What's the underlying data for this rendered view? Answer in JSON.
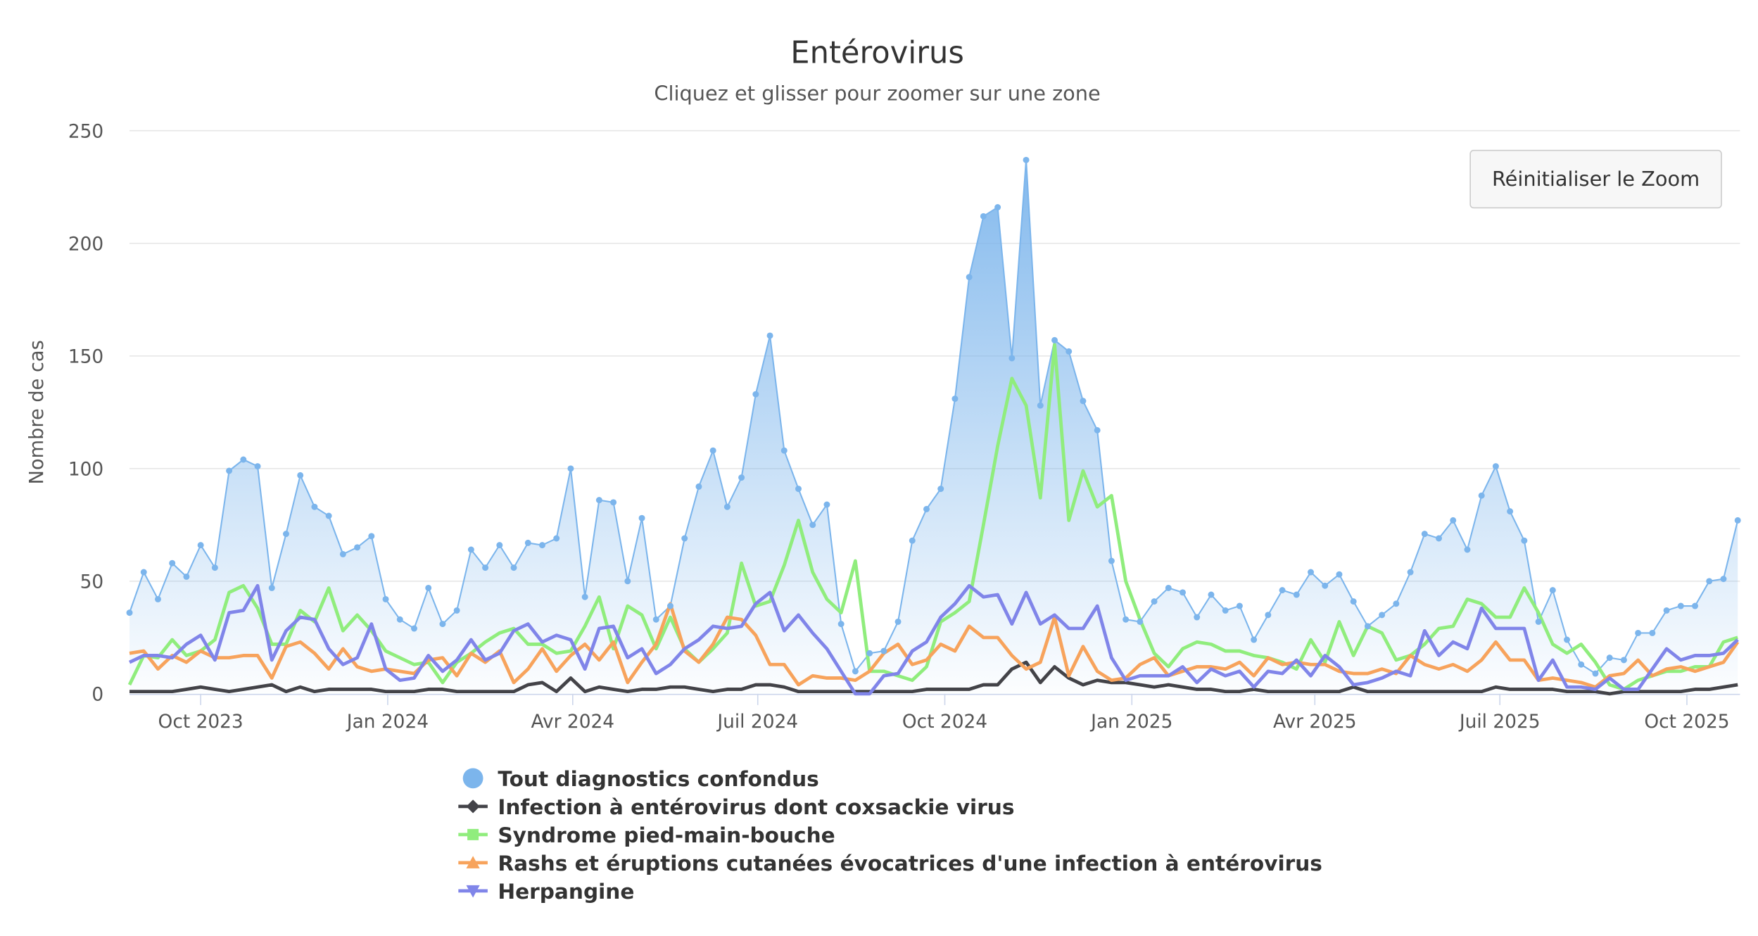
{
  "chart_data": {
    "type": "line",
    "title": "Entérovirus",
    "subtitle": "Cliquez et glisser pour zoomer sur une zone",
    "ylabel": "Nombre de cas",
    "xlabel": "",
    "ylim": [
      0,
      250
    ],
    "yticks": [
      0,
      50,
      100,
      150,
      200,
      250
    ],
    "x_start": "2023-08-27",
    "x_interval": "week",
    "xticks": [
      {
        "date": "2023-10-01",
        "label": "Oct 2023"
      },
      {
        "date": "2024-01-01",
        "label": "Jan 2024"
      },
      {
        "date": "2024-04-01",
        "label": "Avr 2024"
      },
      {
        "date": "2024-07-01",
        "label": "Juil 2024"
      },
      {
        "date": "2024-10-01",
        "label": "Oct 2024"
      },
      {
        "date": "2025-01-01",
        "label": "Jan 2025"
      },
      {
        "date": "2025-04-01",
        "label": "Avr 2025"
      },
      {
        "date": "2025-07-01",
        "label": "Juil 2025"
      },
      {
        "date": "2025-10-01",
        "label": "Oct 2025"
      }
    ],
    "grid": true,
    "legend_placement": "bottom",
    "reset_zoom_label": "Réinitialiser le Zoom",
    "series": [
      {
        "name": "Tout diagnostics confondus",
        "type": "area",
        "color": "#7cb5ec",
        "marker": "circle",
        "values": [
          36,
          54,
          42,
          58,
          52,
          66,
          56,
          99,
          104,
          101,
          47,
          71,
          97,
          83,
          79,
          62,
          65,
          70,
          42,
          33,
          29,
          47,
          31,
          37,
          64,
          56,
          66,
          56,
          67,
          66,
          69,
          100,
          43,
          86,
          85,
          50,
          78,
          33,
          39,
          69,
          92,
          108,
          83,
          96,
          133,
          159,
          108,
          91,
          75,
          84,
          31,
          10,
          18,
          19,
          32,
          68,
          82,
          91,
          131,
          185,
          212,
          216,
          149,
          237,
          128,
          157,
          152,
          130,
          117,
          59,
          33,
          32,
          41,
          47,
          45,
          34,
          44,
          37,
          39,
          24,
          35,
          46,
          44,
          54,
          48,
          53,
          41,
          30,
          35,
          40,
          54,
          71,
          69,
          77,
          64,
          88,
          101,
          81,
          68,
          32,
          46,
          24,
          13,
          9,
          16,
          15,
          27,
          27,
          37,
          39,
          39,
          50,
          51,
          77
        ]
      },
      {
        "name": "Infection à entérovirus dont coxsackie virus",
        "type": "line",
        "color": "#434348",
        "marker": "diamond",
        "values": [
          1,
          1,
          1,
          1,
          2,
          3,
          2,
          1,
          2,
          3,
          4,
          1,
          3,
          1,
          2,
          2,
          2,
          2,
          1,
          1,
          1,
          2,
          2,
          1,
          1,
          1,
          1,
          1,
          4,
          5,
          1,
          7,
          1,
          3,
          2,
          1,
          2,
          2,
          3,
          3,
          2,
          1,
          2,
          2,
          4,
          4,
          3,
          1,
          1,
          1,
          1,
          1,
          1,
          1,
          1,
          1,
          2,
          2,
          2,
          2,
          4,
          4,
          11,
          14,
          5,
          12,
          7,
          4,
          6,
          5,
          5,
          4,
          3,
          4,
          3,
          2,
          2,
          1,
          1,
          2,
          1,
          1,
          1,
          1,
          1,
          1,
          3,
          1,
          1,
          1,
          1,
          1,
          1,
          1,
          1,
          1,
          3,
          2,
          2,
          2,
          2,
          1,
          1,
          1,
          0,
          1,
          1,
          1,
          1,
          1,
          2,
          2,
          3,
          4
        ]
      },
      {
        "name": "Syndrome pied-main-bouche",
        "type": "line",
        "color": "#90ed7d",
        "marker": "square",
        "values": [
          4,
          17,
          16,
          24,
          17,
          19,
          24,
          45,
          48,
          38,
          22,
          22,
          37,
          32,
          47,
          28,
          35,
          28,
          19,
          16,
          13,
          14,
          5,
          14,
          18,
          23,
          27,
          29,
          22,
          22,
          18,
          19,
          30,
          43,
          20,
          39,
          35,
          20,
          34,
          20,
          14,
          20,
          27,
          58,
          39,
          41,
          57,
          77,
          54,
          42,
          36,
          59,
          10,
          10,
          8,
          6,
          12,
          32,
          36,
          41,
          75,
          110,
          140,
          128,
          87,
          155,
          77,
          99,
          83,
          88,
          50,
          33,
          18,
          12,
          20,
          23,
          22,
          19,
          19,
          17,
          16,
          14,
          11,
          24,
          14,
          32,
          17,
          30,
          27,
          15,
          17,
          22,
          29,
          30,
          42,
          40,
          34,
          34,
          47,
          36,
          22,
          18,
          22,
          14,
          4,
          2,
          6,
          8,
          10,
          10,
          12,
          12,
          23,
          25
        ]
      },
      {
        "name": "Rashs et éruptions cutanées évocatrices d'une infection à entérovirus",
        "type": "line",
        "color": "#f7a35c",
        "marker": "triangle",
        "values": [
          18,
          19,
          11,
          17,
          14,
          19,
          16,
          16,
          17,
          17,
          7,
          21,
          23,
          18,
          11,
          20,
          12,
          10,
          11,
          10,
          9,
          15,
          16,
          8,
          18,
          14,
          19,
          5,
          11,
          20,
          10,
          17,
          22,
          15,
          23,
          5,
          14,
          22,
          40,
          19,
          14,
          22,
          34,
          33,
          26,
          13,
          13,
          4,
          8,
          7,
          7,
          6,
          10,
          18,
          22,
          13,
          15,
          22,
          19,
          30,
          25,
          25,
          17,
          11,
          14,
          34,
          8,
          21,
          10,
          6,
          7,
          13,
          16,
          8,
          10,
          12,
          12,
          11,
          14,
          8,
          16,
          13,
          14,
          13,
          13,
          10,
          9,
          9,
          11,
          9,
          17,
          13,
          11,
          13,
          10,
          15,
          23,
          15,
          15,
          6,
          7,
          6,
          5,
          3,
          8,
          9,
          15,
          8,
          11,
          12,
          10,
          12,
          14,
          23
        ]
      },
      {
        "name": "Herpangine",
        "type": "line",
        "color": "#8085e9",
        "marker": "triangle-down",
        "values": [
          14,
          17,
          17,
          16,
          22,
          26,
          15,
          36,
          37,
          48,
          15,
          28,
          34,
          33,
          20,
          13,
          16,
          31,
          11,
          6,
          7,
          17,
          10,
          15,
          24,
          15,
          18,
          28,
          31,
          23,
          26,
          24,
          11,
          29,
          30,
          16,
          20,
          9,
          13,
          20,
          24,
          30,
          29,
          30,
          40,
          45,
          28,
          35,
          27,
          20,
          10,
          0,
          0,
          8,
          9,
          19,
          23,
          34,
          40,
          48,
          43,
          44,
          31,
          45,
          31,
          35,
          29,
          29,
          39,
          16,
          6,
          8,
          8,
          8,
          12,
          5,
          11,
          8,
          10,
          3,
          10,
          9,
          15,
          8,
          17,
          12,
          4,
          5,
          7,
          10,
          8,
          28,
          17,
          23,
          20,
          38,
          29,
          29,
          29,
          6,
          15,
          3,
          3,
          2,
          7,
          2,
          2,
          11,
          20,
          15,
          17,
          17,
          18,
          24
        ]
      }
    ]
  }
}
